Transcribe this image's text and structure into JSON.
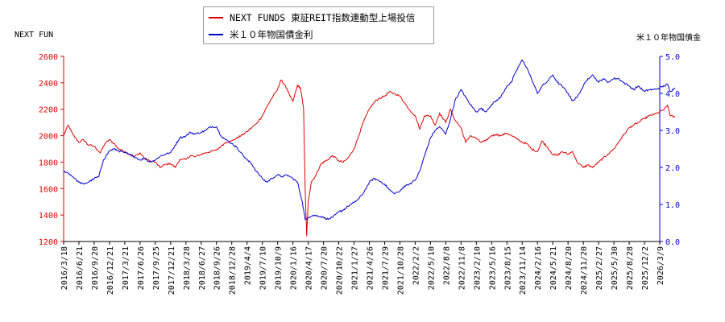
{
  "chart_data": {
    "type": "line",
    "title": "",
    "left_axis_title": "NEXT FUN",
    "right_axis_title": "米１０年物国債金",
    "y_left": {
      "min": 1200,
      "max": 2600,
      "ticks": [
        "1200",
        "1400",
        "1600",
        "1800",
        "2000",
        "2200",
        "2400",
        "2600"
      ]
    },
    "y_right": {
      "min": 0.0,
      "max": 5.0,
      "ticks": [
        "0.0",
        "1.0",
        "2.0",
        "3.0",
        "4.0",
        "5.0"
      ]
    },
    "x_tick_labels": [
      "2016/3/18",
      "2016/6/21",
      "2016/9/20",
      "2016/12/21",
      "2017/3/21",
      "2017/6/26",
      "2017/9/25",
      "2017/12/21",
      "2018/3/28",
      "2018/6/27",
      "2018/9/26",
      "2018/12/28",
      "2019/4/4",
      "2019/7/10",
      "2019/10/9",
      "2020/1/16",
      "2020/4/17",
      "2020/7/20",
      "2020/10/22",
      "2021/1/27",
      "2021/4/26",
      "2021/7/29",
      "2021/10/28",
      "2022/2/2",
      "2022/5/10",
      "2022/8/8",
      "2022/11/8",
      "2023/2/10",
      "2023/5/16",
      "2023/8/15",
      "2023/11/14",
      "2024/2/16",
      "2024/5/21",
      "2024/8/20",
      "2024/11/20",
      "2025/2/27",
      "2025/5/30",
      "2025/8/28",
      "2025/12/2",
      "2026/3/9"
    ],
    "grid": false,
    "legend_position": "top-center",
    "colors": {
      "series1": "#dd0000",
      "series2": "#0000cc",
      "left_axis": "#dd0000",
      "right_axis": "#0000cc"
    },
    "series": [
      {
        "name": "NEXT FUNDS 東証REIT指数連動型上場投信",
        "axis": "left",
        "points": [
          [
            0,
            2000
          ],
          [
            0.3,
            2080
          ],
          [
            0.6,
            2010
          ],
          [
            1,
            1950
          ],
          [
            1.3,
            1970
          ],
          [
            1.6,
            1930
          ],
          [
            2,
            1920
          ],
          [
            2.4,
            1870
          ],
          [
            2.7,
            1940
          ],
          [
            3,
            1970
          ],
          [
            3.3,
            1940
          ],
          [
            3.6,
            1900
          ],
          [
            4,
            1880
          ],
          [
            4.3,
            1860
          ],
          [
            4.6,
            1840
          ],
          [
            5,
            1870
          ],
          [
            5.3,
            1830
          ],
          [
            5.6,
            1810
          ],
          [
            6,
            1800
          ],
          [
            6.3,
            1760
          ],
          [
            6.6,
            1780
          ],
          [
            7,
            1790
          ],
          [
            7.3,
            1760
          ],
          [
            7.6,
            1820
          ],
          [
            8,
            1820
          ],
          [
            8.3,
            1850
          ],
          [
            8.6,
            1840
          ],
          [
            9,
            1860
          ],
          [
            9.3,
            1870
          ],
          [
            9.6,
            1880
          ],
          [
            10,
            1890
          ],
          [
            10.3,
            1920
          ],
          [
            10.6,
            1950
          ],
          [
            11,
            1960
          ],
          [
            11.3,
            1980
          ],
          [
            11.6,
            2000
          ],
          [
            12,
            2030
          ],
          [
            12.3,
            2060
          ],
          [
            12.6,
            2090
          ],
          [
            13,
            2150
          ],
          [
            13.3,
            2220
          ],
          [
            13.6,
            2280
          ],
          [
            14,
            2350
          ],
          [
            14.2,
            2420
          ],
          [
            14.5,
            2380
          ],
          [
            14.8,
            2300
          ],
          [
            15,
            2260
          ],
          [
            15.3,
            2380
          ],
          [
            15.5,
            2360
          ],
          [
            15.7,
            2200
          ],
          [
            15.8,
            1600
          ],
          [
            15.9,
            1240
          ],
          [
            16,
            1500
          ],
          [
            16.2,
            1650
          ],
          [
            16.5,
            1700
          ],
          [
            16.8,
            1780
          ],
          [
            17,
            1800
          ],
          [
            17.3,
            1820
          ],
          [
            17.6,
            1850
          ],
          [
            18,
            1810
          ],
          [
            18.3,
            1800
          ],
          [
            18.6,
            1830
          ],
          [
            19,
            1900
          ],
          [
            19.3,
            2000
          ],
          [
            19.6,
            2100
          ],
          [
            20,
            2200
          ],
          [
            20.3,
            2250
          ],
          [
            20.6,
            2280
          ],
          [
            21,
            2300
          ],
          [
            21.3,
            2330
          ],
          [
            21.6,
            2320
          ],
          [
            22,
            2300
          ],
          [
            22.3,
            2250
          ],
          [
            22.6,
            2200
          ],
          [
            23,
            2150
          ],
          [
            23.3,
            2050
          ],
          [
            23.6,
            2150
          ],
          [
            24,
            2150
          ],
          [
            24.3,
            2080
          ],
          [
            24.6,
            2170
          ],
          [
            25,
            2100
          ],
          [
            25.3,
            2200
          ],
          [
            25.6,
            2120
          ],
          [
            26,
            2060
          ],
          [
            26.3,
            1950
          ],
          [
            26.6,
            2000
          ],
          [
            27,
            1980
          ],
          [
            27.3,
            1950
          ],
          [
            27.6,
            1960
          ],
          [
            28,
            2000
          ],
          [
            28.3,
            2010
          ],
          [
            28.6,
            2000
          ],
          [
            29,
            2020
          ],
          [
            29.3,
            2000
          ],
          [
            29.6,
            1980
          ],
          [
            30,
            1950
          ],
          [
            30.3,
            1940
          ],
          [
            30.6,
            1900
          ],
          [
            31,
            1880
          ],
          [
            31.3,
            1960
          ],
          [
            31.6,
            1920
          ],
          [
            32,
            1860
          ],
          [
            32.3,
            1850
          ],
          [
            32.6,
            1880
          ],
          [
            33,
            1860
          ],
          [
            33.3,
            1880
          ],
          [
            33.6,
            1800
          ],
          [
            34,
            1760
          ],
          [
            34.3,
            1780
          ],
          [
            34.6,
            1760
          ],
          [
            35,
            1800
          ],
          [
            35.3,
            1830
          ],
          [
            35.6,
            1860
          ],
          [
            36,
            1900
          ],
          [
            36.3,
            1950
          ],
          [
            36.6,
            2000
          ],
          [
            37,
            2060
          ],
          [
            37.3,
            2080
          ],
          [
            37.6,
            2100
          ],
          [
            38,
            2130
          ],
          [
            38.3,
            2150
          ],
          [
            38.6,
            2160
          ],
          [
            39,
            2180
          ],
          [
            39.3,
            2200
          ],
          [
            39.5,
            2230
          ],
          [
            39.7,
            2150
          ],
          [
            40,
            2140
          ]
        ]
      },
      {
        "name": "米１０年物国債金利",
        "axis": "right",
        "points": [
          [
            0,
            1.9
          ],
          [
            0.3,
            1.85
          ],
          [
            0.6,
            1.75
          ],
          [
            1,
            1.6
          ],
          [
            1.3,
            1.55
          ],
          [
            1.6,
            1.6
          ],
          [
            2,
            1.7
          ],
          [
            2.3,
            1.75
          ],
          [
            2.6,
            2.2
          ],
          [
            3,
            2.45
          ],
          [
            3.3,
            2.5
          ],
          [
            3.6,
            2.45
          ],
          [
            4,
            2.4
          ],
          [
            4.3,
            2.35
          ],
          [
            4.6,
            2.3
          ],
          [
            5,
            2.2
          ],
          [
            5.3,
            2.25
          ],
          [
            5.6,
            2.15
          ],
          [
            6,
            2.2
          ],
          [
            6.3,
            2.3
          ],
          [
            6.6,
            2.35
          ],
          [
            7,
            2.4
          ],
          [
            7.3,
            2.6
          ],
          [
            7.6,
            2.8
          ],
          [
            8,
            2.85
          ],
          [
            8.3,
            2.95
          ],
          [
            8.6,
            2.9
          ],
          [
            9,
            2.95
          ],
          [
            9.3,
            3.0
          ],
          [
            9.6,
            3.1
          ],
          [
            10,
            3.1
          ],
          [
            10.3,
            2.85
          ],
          [
            10.6,
            2.75
          ],
          [
            11,
            2.65
          ],
          [
            11.3,
            2.55
          ],
          [
            11.6,
            2.4
          ],
          [
            12,
            2.2
          ],
          [
            12.3,
            2.1
          ],
          [
            12.6,
            1.9
          ],
          [
            13,
            1.7
          ],
          [
            13.3,
            1.6
          ],
          [
            13.6,
            1.7
          ],
          [
            14,
            1.8
          ],
          [
            14.3,
            1.75
          ],
          [
            14.6,
            1.8
          ],
          [
            15,
            1.7
          ],
          [
            15.3,
            1.6
          ],
          [
            15.6,
            1.1
          ],
          [
            15.8,
            0.6
          ],
          [
            16,
            0.65
          ],
          [
            16.3,
            0.7
          ],
          [
            16.6,
            0.7
          ],
          [
            17,
            0.65
          ],
          [
            17.3,
            0.6
          ],
          [
            17.6,
            0.65
          ],
          [
            18,
            0.8
          ],
          [
            18.3,
            0.85
          ],
          [
            18.6,
            0.95
          ],
          [
            19,
            1.05
          ],
          [
            19.3,
            1.15
          ],
          [
            19.6,
            1.3
          ],
          [
            20,
            1.6
          ],
          [
            20.3,
            1.7
          ],
          [
            20.6,
            1.65
          ],
          [
            21,
            1.55
          ],
          [
            21.3,
            1.4
          ],
          [
            21.6,
            1.3
          ],
          [
            22,
            1.35
          ],
          [
            22.3,
            1.5
          ],
          [
            22.6,
            1.55
          ],
          [
            23,
            1.65
          ],
          [
            23.3,
            1.9
          ],
          [
            23.6,
            2.3
          ],
          [
            24,
            2.8
          ],
          [
            24.3,
            3.0
          ],
          [
            24.6,
            3.1
          ],
          [
            25,
            2.9
          ],
          [
            25.3,
            3.3
          ],
          [
            25.6,
            3.8
          ],
          [
            26,
            4.1
          ],
          [
            26.3,
            3.9
          ],
          [
            26.6,
            3.7
          ],
          [
            27,
            3.5
          ],
          [
            27.3,
            3.6
          ],
          [
            27.6,
            3.5
          ],
          [
            28,
            3.7
          ],
          [
            28.3,
            3.8
          ],
          [
            28.6,
            3.9
          ],
          [
            29,
            4.2
          ],
          [
            29.3,
            4.3
          ],
          [
            29.6,
            4.6
          ],
          [
            30,
            4.9
          ],
          [
            30.3,
            4.7
          ],
          [
            30.6,
            4.4
          ],
          [
            31,
            4.0
          ],
          [
            31.3,
            4.2
          ],
          [
            31.6,
            4.3
          ],
          [
            32,
            4.5
          ],
          [
            32.3,
            4.3
          ],
          [
            32.6,
            4.2
          ],
          [
            33,
            4.0
          ],
          [
            33.3,
            3.8
          ],
          [
            33.6,
            3.9
          ],
          [
            34,
            4.2
          ],
          [
            34.3,
            4.4
          ],
          [
            34.6,
            4.5
          ],
          [
            35,
            4.3
          ],
          [
            35.3,
            4.4
          ],
          [
            35.6,
            4.3
          ],
          [
            36,
            4.4
          ],
          [
            36.3,
            4.4
          ],
          [
            36.6,
            4.3
          ],
          [
            37,
            4.2
          ],
          [
            37.3,
            4.1
          ],
          [
            37.6,
            4.2
          ],
          [
            38,
            4.05
          ],
          [
            38.3,
            4.1
          ],
          [
            38.6,
            4.1
          ],
          [
            39,
            4.15
          ],
          [
            39.3,
            4.2
          ],
          [
            39.5,
            4.25
          ],
          [
            39.7,
            4.05
          ],
          [
            40,
            4.15
          ]
        ]
      }
    ]
  }
}
